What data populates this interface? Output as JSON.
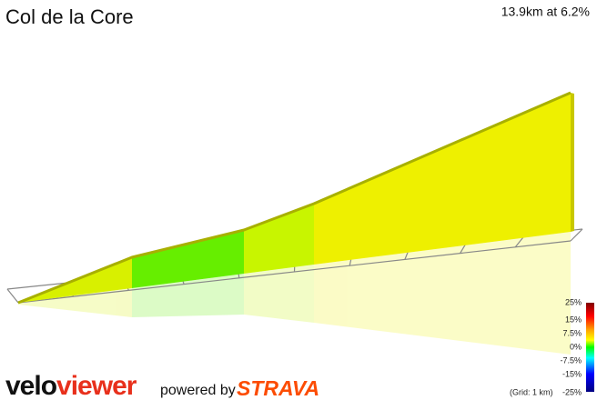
{
  "header": {
    "title": "Col de la Core",
    "summary": "13.9km at 6.2%"
  },
  "legend": {
    "ticks": [
      "25%",
      "15%",
      "7.5%",
      "0%",
      "-7.5%",
      "-15%",
      "-25%"
    ],
    "grid_note": "(Grid: 1 km)"
  },
  "footer": {
    "logo_part1": "velo",
    "logo_part2": "viewer",
    "powered_by": "powered by",
    "partner": "STRAVA"
  }
}
